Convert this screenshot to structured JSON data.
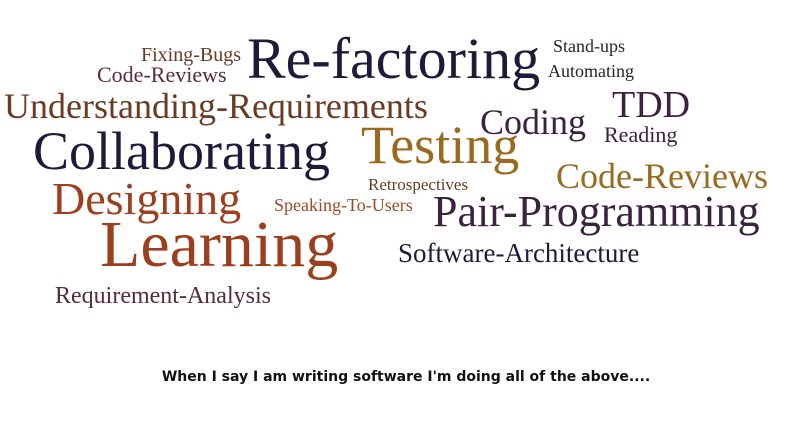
{
  "palette": {
    "dark_navy": "#1e1a3a",
    "dark_purple": "#3b2340",
    "brown": "#6a3a22",
    "rust": "#9b3f1f",
    "ochre": "#9a6a1e",
    "maroon": "#5a2a2a"
  },
  "words": [
    {
      "id": "fixing-bugs",
      "text": "Fixing-Bugs",
      "color": "#6a3a22"
    },
    {
      "id": "code-reviews-small",
      "text": "Code-Reviews",
      "color": "#5a2a3a"
    },
    {
      "id": "re-factoring",
      "text": "Re-factoring",
      "color": "#1e1a3a"
    },
    {
      "id": "stand-ups",
      "text": "Stand-ups",
      "color": "#2a2030"
    },
    {
      "id": "automating",
      "text": "Automating",
      "color": "#2a2030"
    },
    {
      "id": "understanding-requirements",
      "text": "Understanding-Requirements",
      "color": "#6a3a22"
    },
    {
      "id": "tdd",
      "text": "TDD",
      "color": "#3b2340"
    },
    {
      "id": "coding",
      "text": "Coding",
      "color": "#3b2340"
    },
    {
      "id": "reading",
      "text": "Reading",
      "color": "#3b2340"
    },
    {
      "id": "collaborating",
      "text": "Collaborating",
      "color": "#1e1a3a"
    },
    {
      "id": "testing",
      "text": "Testing",
      "color": "#9a6a1e"
    },
    {
      "id": "code-reviews-large",
      "text": "Code-Reviews",
      "color": "#9a6a1e"
    },
    {
      "id": "retrospectives",
      "text": "Retrospectives",
      "color": "#6a3a22"
    },
    {
      "id": "designing",
      "text": "Designing",
      "color": "#9b3f1f"
    },
    {
      "id": "speaking-to-users",
      "text": "Speaking-To-Users",
      "color": "#9b4a25"
    },
    {
      "id": "pair-programming",
      "text": "Pair-Programming",
      "color": "#3b2340"
    },
    {
      "id": "learning",
      "text": "Learning",
      "color": "#9b3f1f"
    },
    {
      "id": "software-architecture",
      "text": "Software-Architecture",
      "color": "#1e1a3a"
    },
    {
      "id": "requirement-analysis",
      "text": "Requirement-Analysis",
      "color": "#5a2a3a"
    }
  ],
  "caption": "When I say I am writing software I'm doing all of the above...."
}
